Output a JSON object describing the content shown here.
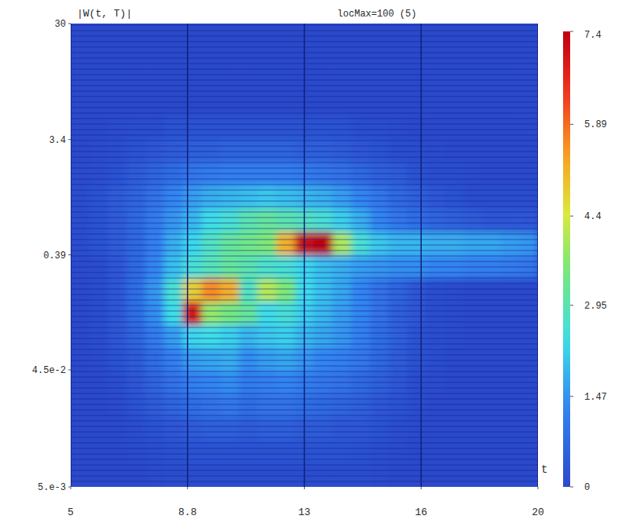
{
  "chart_data": {
    "type": "heatmap",
    "title": "|W(t, T)|",
    "annotations": [
      "locMax=100 (5)"
    ],
    "x_label": "t",
    "log": "y",
    "grid": true,
    "xlim": [
      5,
      20
    ],
    "ylim": [
      0.005,
      30
    ],
    "xticks": [
      5,
      {
        "value": 8.75,
        "label": "8.8"
      },
      {
        "value": 12.5,
        "label": "13"
      },
      {
        "value": 16.25,
        "label": "16"
      },
      20
    ],
    "yticks": [
      {
        "value": 0.005,
        "label": "5.e-3"
      },
      {
        "value": 0.045,
        "label": "4.5e-2"
      },
      0.39,
      3.4,
      30
    ],
    "x_edges": [
      5,
      5.6,
      6.2,
      6.8,
      7.4,
      8,
      8.6,
      9.2,
      9.8,
      10.4,
      11,
      11.6,
      12.2,
      12.8,
      13.4,
      14,
      14.6,
      15.2,
      15.8,
      16.4,
      17,
      17.6,
      18.2,
      18.8,
      19.4,
      20
    ],
    "y_edges": [
      0.005,
      0.00773,
      0.01195,
      0.01848,
      0.02857,
      0.04417,
      0.0683,
      0.1056,
      0.1632,
      0.2523,
      0.39,
      0.603,
      0.932,
      1.441,
      2.228,
      3.445,
      5.326,
      8.23,
      12.73,
      19.68,
      30
    ],
    "cells": [
      [
        0,
        0,
        0,
        0,
        0.05,
        0.1,
        0.1,
        0.1,
        0.1,
        0.1,
        0.1,
        0.1,
        0.1,
        0.1,
        0.1,
        0.1,
        0.05,
        0,
        0,
        0,
        0,
        0,
        0,
        0,
        0
      ],
      [
        0,
        0,
        0,
        0.05,
        0.1,
        0.15,
        0.2,
        0.2,
        0.2,
        0.2,
        0.2,
        0.2,
        0.2,
        0.2,
        0.2,
        0.15,
        0.1,
        0.05,
        0,
        0,
        0,
        0,
        0,
        0,
        0
      ],
      [
        0,
        0,
        0,
        0.1,
        0.2,
        0.3,
        0.4,
        0.5,
        0.5,
        0.4,
        0.5,
        0.5,
        0.4,
        0.4,
        0.3,
        0.3,
        0.2,
        0.1,
        0.05,
        0,
        0,
        0,
        0,
        0,
        0
      ],
      [
        0,
        0,
        0.05,
        0.2,
        0.4,
        0.6,
        0.8,
        0.9,
        1.0,
        0.8,
        0.9,
        0.9,
        0.8,
        0.7,
        0.6,
        0.5,
        0.3,
        0.2,
        0.1,
        0,
        0,
        0,
        0,
        0,
        0
      ],
      [
        0,
        0,
        0.1,
        0.3,
        0.6,
        0.9,
        1.2,
        1.3,
        1.4,
        1.1,
        1.2,
        1.3,
        1.1,
        1.0,
        0.9,
        0.7,
        0.5,
        0.3,
        0.1,
        0.05,
        0,
        0,
        0,
        0,
        0
      ],
      [
        0,
        0.05,
        0.2,
        0.4,
        0.8,
        1.2,
        1.6,
        1.7,
        1.8,
        1.4,
        1.6,
        1.7,
        1.5,
        1.3,
        1.2,
        1.0,
        0.7,
        0.4,
        0.2,
        0.1,
        0,
        0,
        0,
        0,
        0
      ],
      [
        0,
        0.1,
        0.3,
        0.6,
        1.1,
        1.6,
        2.3,
        2.4,
        2.2,
        1.9,
        2.1,
        2.2,
        1.9,
        1.7,
        1.5,
        1.2,
        0.8,
        0.5,
        0.2,
        0.1,
        0.05,
        0,
        0,
        0,
        0
      ],
      [
        0,
        0.1,
        0.3,
        0.8,
        1.4,
        2.4,
        7.0,
        3.8,
        3.5,
        3.2,
        2.4,
        2.6,
        2.2,
        1.9,
        1.6,
        1.3,
        0.9,
        0.5,
        0.3,
        0.1,
        0.05,
        0,
        0,
        0,
        0
      ],
      [
        0,
        0.1,
        0.3,
        0.8,
        1.5,
        2.6,
        4.8,
        5.6,
        5.2,
        2.8,
        4.1,
        3.6,
        2.4,
        2.0,
        1.7,
        1.3,
        0.9,
        0.6,
        0.3,
        0.1,
        0.05,
        0,
        0,
        0,
        0
      ],
      [
        0.05,
        0.1,
        0.3,
        0.7,
        1.3,
        2.0,
        2.6,
        2.9,
        3.2,
        3.0,
        2.7,
        2.6,
        2.3,
        2.0,
        1.8,
        1.6,
        1.5,
        1.4,
        1.4,
        1.3,
        1.3,
        1.2,
        1.2,
        1.1,
        1.0
      ],
      [
        0.1,
        0.2,
        0.4,
        0.7,
        1.2,
        1.8,
        2.3,
        2.8,
        3.2,
        3.4,
        3.6,
        5.2,
        7.2,
        7.4,
        4.0,
        2.6,
        2.1,
        1.9,
        1.9,
        1.8,
        1.8,
        1.7,
        1.7,
        1.6,
        1.5
      ],
      [
        0.1,
        0.2,
        0.4,
        0.7,
        1.1,
        1.5,
        1.9,
        2.4,
        2.6,
        3.0,
        3.2,
        3.0,
        2.8,
        2.6,
        2.2,
        1.8,
        1.3,
        1.0,
        0.8,
        0.6,
        0.5,
        0.4,
        0.3,
        0.3,
        0.3
      ],
      [
        0.1,
        0.2,
        0.4,
        0.6,
        0.9,
        1.3,
        1.6,
        1.8,
        1.9,
        2.0,
        2.1,
        2.0,
        1.9,
        1.8,
        1.6,
        1.3,
        1.0,
        0.7,
        0.5,
        0.3,
        0.2,
        0.1,
        0.1,
        0.1,
        0.1
      ],
      [
        0.05,
        0.1,
        0.2,
        0.4,
        0.6,
        0.8,
        1.0,
        1.1,
        1.2,
        1.2,
        1.2,
        1.2,
        1.1,
        1.0,
        0.9,
        0.7,
        0.5,
        0.4,
        0.2,
        0.1,
        0.1,
        0.05,
        0,
        0,
        0
      ],
      [
        0,
        0.05,
        0.1,
        0.2,
        0.3,
        0.4,
        0.5,
        0.5,
        0.6,
        0.6,
        0.6,
        0.6,
        0.5,
        0.5,
        0.4,
        0.3,
        0.2,
        0.1,
        0.1,
        0.05,
        0,
        0,
        0,
        0,
        0
      ],
      [
        0,
        0,
        0.05,
        0.1,
        0.1,
        0.2,
        0.2,
        0.2,
        0.2,
        0.2,
        0.2,
        0.2,
        0.2,
        0.2,
        0.2,
        0.1,
        0.1,
        0.05,
        0,
        0,
        0,
        0,
        0,
        0,
        0
      ],
      [
        0,
        0,
        0,
        0,
        0,
        0,
        0,
        0,
        0,
        0,
        0,
        0,
        0,
        0,
        0,
        0,
        0,
        0,
        0,
        0,
        0,
        0,
        0,
        0,
        0
      ],
      [
        0,
        0,
        0,
        0,
        0,
        0,
        0,
        0,
        0,
        0,
        0,
        0,
        0,
        0,
        0,
        0,
        0,
        0,
        0,
        0,
        0,
        0,
        0,
        0,
        0
      ],
      [
        0,
        0,
        0,
        0,
        0,
        0,
        0,
        0,
        0,
        0,
        0,
        0,
        0,
        0,
        0,
        0,
        0,
        0,
        0,
        0,
        0,
        0,
        0,
        0,
        0
      ],
      [
        0,
        0,
        0,
        0,
        0,
        0,
        0,
        0,
        0,
        0,
        0,
        0,
        0,
        0,
        0,
        0,
        0,
        0,
        0,
        0,
        0,
        0,
        0,
        0,
        0
      ]
    ],
    "colorbar": {
      "range": [
        0,
        7.4
      ],
      "ticks": [
        0,
        1.47,
        2.95,
        4.4,
        5.89,
        7.4
      ]
    }
  }
}
